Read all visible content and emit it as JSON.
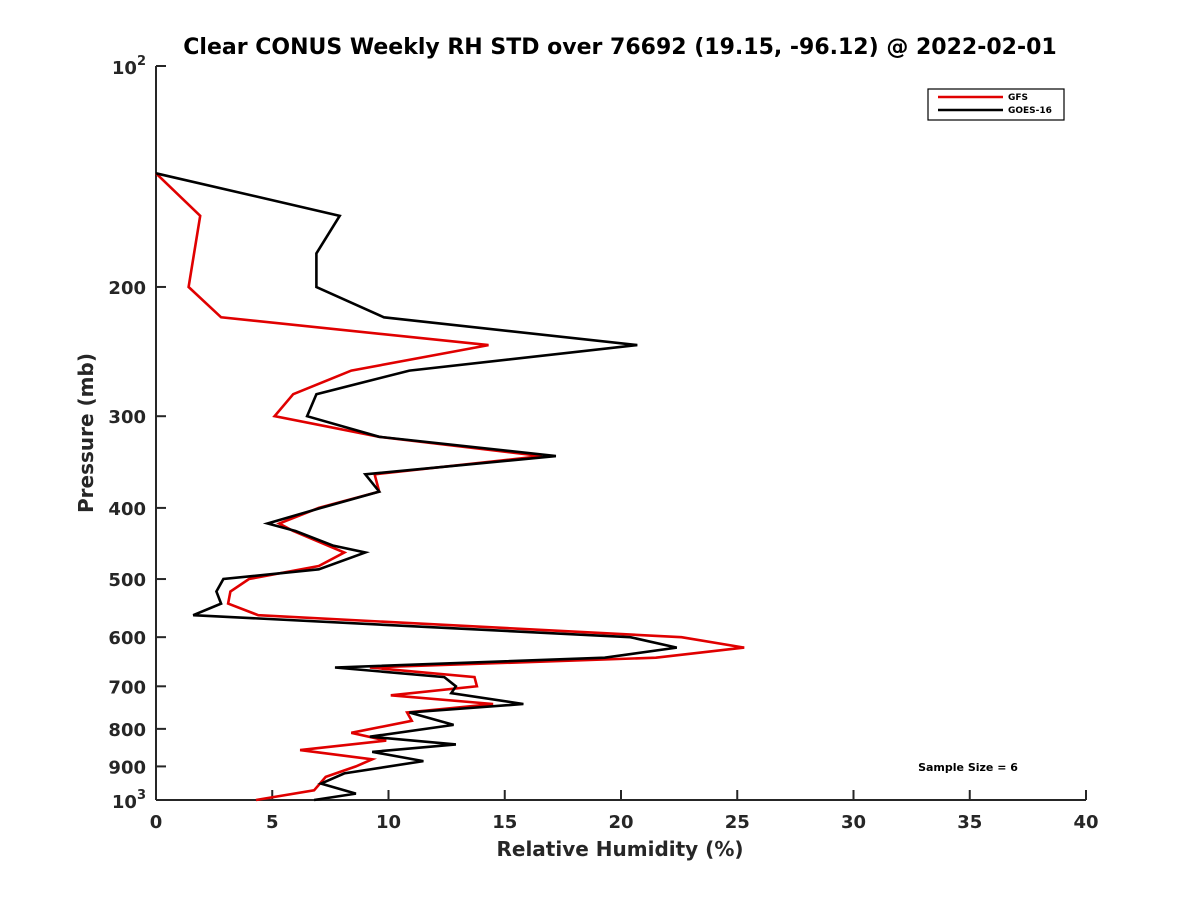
{
  "chart_data": {
    "type": "line",
    "title": "Clear CONUS Weekly RH STD over 76692 (19.15, -96.12) @ 2022-02-01",
    "xlabel": "Relative Humidity (%)",
    "ylabel": "Pressure (mb)",
    "xlim": [
      0,
      40
    ],
    "ylim": [
      100,
      1000
    ],
    "yscale": "log",
    "y_reversed": true,
    "grid": false,
    "xticks": [
      0,
      5,
      10,
      15,
      20,
      25,
      30,
      35,
      40
    ],
    "xtick_labels": [
      "0",
      "5",
      "10",
      "15",
      "20",
      "25",
      "30",
      "35",
      "40"
    ],
    "yticks": [
      100,
      200,
      300,
      400,
      500,
      600,
      700,
      800,
      900,
      1000
    ],
    "ytick_labels": [
      {
        "base": "10",
        "exp": "2"
      },
      {
        "text": "200"
      },
      {
        "text": "300"
      },
      {
        "text": "400"
      },
      {
        "text": "500"
      },
      {
        "text": "600"
      },
      {
        "text": "700"
      },
      {
        "text": "800"
      },
      {
        "text": "900"
      },
      {
        "base": "10",
        "exp": "3"
      }
    ],
    "legend": {
      "position": "top-right",
      "entries": [
        "GFS",
        "GOES-16"
      ]
    },
    "annotation": "Sample Size = 6",
    "series": [
      {
        "name": "GFS",
        "color": "#e00000",
        "points": [
          [
            0.0,
            140
          ],
          [
            1.9,
            160
          ],
          [
            1.4,
            200
          ],
          [
            2.8,
            220
          ],
          [
            14.3,
            240
          ],
          [
            8.4,
            260
          ],
          [
            5.9,
            280
          ],
          [
            5.1,
            300
          ],
          [
            9.6,
            320
          ],
          [
            16.6,
            340
          ],
          [
            9.4,
            360
          ],
          [
            9.6,
            380
          ],
          [
            7.0,
            400
          ],
          [
            5.3,
            420
          ],
          [
            5.9,
            430
          ],
          [
            8.1,
            460
          ],
          [
            7.0,
            480
          ],
          [
            4.0,
            500
          ],
          [
            3.2,
            520
          ],
          [
            3.1,
            540
          ],
          [
            4.4,
            560
          ],
          [
            22.6,
            600
          ],
          [
            25.3,
            620
          ],
          [
            21.5,
            640
          ],
          [
            9.2,
            660
          ],
          [
            13.7,
            680
          ],
          [
            13.8,
            700
          ],
          [
            10.1,
            720
          ],
          [
            14.5,
            740
          ],
          [
            10.8,
            760
          ],
          [
            11.0,
            780
          ],
          [
            8.4,
            810
          ],
          [
            9.9,
            830
          ],
          [
            6.2,
            855
          ],
          [
            9.3,
            880
          ],
          [
            8.6,
            900
          ],
          [
            7.3,
            930
          ],
          [
            6.8,
            970
          ],
          [
            4.3,
            1000
          ]
        ]
      },
      {
        "name": "GOES-16",
        "color": "#000000",
        "points": [
          [
            0.0,
            140
          ],
          [
            7.9,
            160
          ],
          [
            6.9,
            180
          ],
          [
            6.9,
            200
          ],
          [
            9.8,
            220
          ],
          [
            20.7,
            240
          ],
          [
            10.9,
            260
          ],
          [
            6.9,
            280
          ],
          [
            6.5,
            300
          ],
          [
            9.6,
            320
          ],
          [
            17.2,
            340
          ],
          [
            9.0,
            360
          ],
          [
            9.6,
            380
          ],
          [
            7.1,
            400
          ],
          [
            4.8,
            420
          ],
          [
            6.0,
            430
          ],
          [
            7.6,
            450
          ],
          [
            9.0,
            460
          ],
          [
            7.0,
            485
          ],
          [
            2.9,
            500
          ],
          [
            2.6,
            520
          ],
          [
            2.8,
            540
          ],
          [
            1.6,
            560
          ],
          [
            20.4,
            600
          ],
          [
            22.4,
            620
          ],
          [
            19.3,
            640
          ],
          [
            7.7,
            660
          ],
          [
            12.4,
            680
          ],
          [
            12.9,
            700
          ],
          [
            12.7,
            715
          ],
          [
            15.8,
            740
          ],
          [
            10.9,
            760
          ],
          [
            12.8,
            790
          ],
          [
            9.2,
            820
          ],
          [
            12.9,
            840
          ],
          [
            9.3,
            860
          ],
          [
            11.5,
            885
          ],
          [
            8.1,
            920
          ],
          [
            7.1,
            950
          ],
          [
            8.6,
            980
          ],
          [
            6.8,
            1000
          ]
        ]
      }
    ]
  }
}
